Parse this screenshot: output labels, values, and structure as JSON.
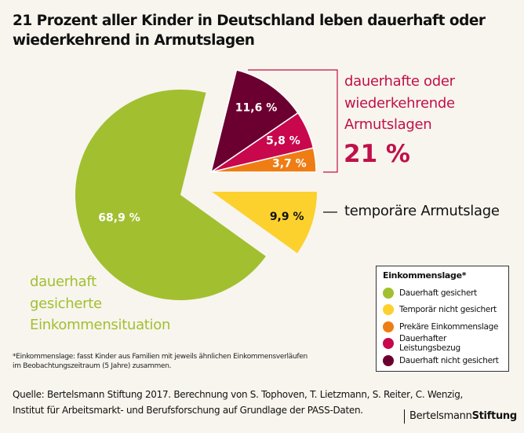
{
  "title_lines": [
    "21 Prozent aller Kinder in Deutschland leben dauerhaft oder",
    "wiederkehrend in Armutslagen"
  ],
  "chart_data": {
    "type": "pie",
    "title": "21 Prozent aller Kinder in Deutschland leben dauerhaft oder wiederkehrend in Armutslagen",
    "slices": [
      {
        "name": "Dauerhaft gesichert",
        "value": 68.9,
        "label": "68,9 %",
        "color": "#a2bf30"
      },
      {
        "name": "Temporär nicht gesichert",
        "value": 9.9,
        "label": "9,9 %",
        "color": "#fcd12e"
      },
      {
        "name": "Prekäre Einkommenslage",
        "value": 3.7,
        "label": "3,7 %",
        "color": "#ee7d14"
      },
      {
        "name": "Dauerhafter Leistungsbezug",
        "value": 5.8,
        "label": "5,8 %",
        "color": "#c8074d"
      },
      {
        "name": "Dauerhaft nicht gesichert",
        "value": 11.6,
        "label": "11,6 %",
        "color": "#6b0030"
      }
    ],
    "annotations": {
      "poverty_lines": [
        "dauerhafte oder",
        "wiederkehrende",
        "Armutslagen"
      ],
      "poverty_total": "21 %",
      "temporary": "temporäre Armutslage",
      "secure_lines": [
        "dauerhaft",
        "gesicherte",
        "Einkommensituation"
      ]
    },
    "legend": {
      "title": "Einkommenslage*",
      "placement": "bottom-right"
    }
  },
  "footnote_lines": [
    "*Einkommenslage: fasst Kinder aus Familien mit jeweils ähnlichen Einkommensverläufen",
    "im Beobachtungszeitraum (5 Jahre) zusammen."
  ],
  "source_lines": [
    "Quelle: Bertelsmann Stiftung 2017. Berechnung von S. Tophoven, T. Lietzmann, S. Reiter, C. Wenzig,",
    "Institut für Arbeitsmarkt- und Berufsforschung auf Grundlage der PASS-Daten."
  ],
  "logo": {
    "part1": "Bertelsmann",
    "part2": "Stiftung"
  }
}
